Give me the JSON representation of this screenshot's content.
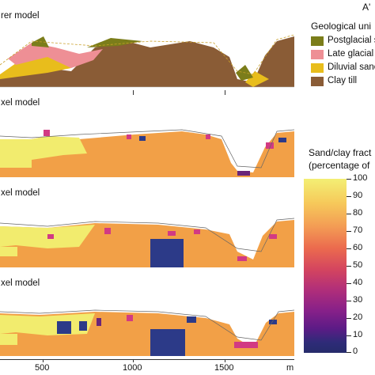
{
  "corner_label": "A'",
  "panels": [
    {
      "label": "rer  model"
    },
    {
      "label": "xel model"
    },
    {
      "label": "xel model"
    },
    {
      "label": "xel model"
    }
  ],
  "geo_legend": {
    "title": "Geological uni",
    "units": [
      {
        "label": "Postglacial s",
        "color": "#7b7d1a"
      },
      {
        "label": "Late glacial",
        "color": "#ee8f95"
      },
      {
        "label": "Diluvial sanc",
        "color": "#e8bd1c"
      },
      {
        "label": "Clay till",
        "color": "#8a5c36"
      }
    ]
  },
  "colorbar": {
    "title_line1": "Sand/clay fract",
    "title_line2": "(percentage of",
    "ticks": [
      "100",
      "90",
      "80",
      "70",
      "60",
      "50",
      "40",
      "30",
      "20",
      "10",
      "0"
    ],
    "stops": [
      "#f3ef74",
      "#f6c95a",
      "#f39a54",
      "#eb6a4e",
      "#d4455f",
      "#b02e7a",
      "#862089",
      "#5c1b86",
      "#2e2b78",
      "#262b6a"
    ]
  },
  "x_axis": {
    "ticks": [
      "500",
      "1000",
      "1500"
    ],
    "unit": "m"
  },
  "colors": {
    "clay_orange": "#f2a047",
    "sand_yellow": "#f2ec6e",
    "deep_navy": "#2c3a88",
    "magenta": "#d23a83",
    "purple": "#6a2579"
  }
}
